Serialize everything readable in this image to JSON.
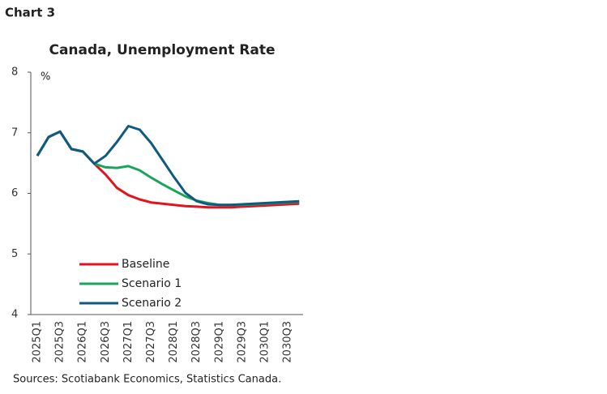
{
  "header": "Chart 3",
  "source": "Sources: Scotiabank Economics, Statistics Canada.",
  "chart_data": {
    "type": "line",
    "title": "Canada, Unemployment Rate",
    "y_unit": "%",
    "categories": [
      "2025Q1",
      null,
      "2025Q3",
      null,
      "2026Q1",
      null,
      "2026Q3",
      null,
      "2027Q1",
      null,
      "2027Q3",
      null,
      "2028Q1",
      null,
      "2028Q3",
      null,
      "2029Q1",
      null,
      "2029Q3",
      null,
      "2030Q1",
      null,
      "2030Q3",
      null
    ],
    "series": [
      {
        "name": "Baseline",
        "color": "#e0141e",
        "values": [
          6.62,
          6.93,
          7.02,
          6.73,
          6.69,
          6.49,
          6.31,
          6.09,
          5.97,
          5.9,
          5.85,
          5.83,
          5.81,
          5.79,
          5.78,
          5.77,
          5.77,
          5.77,
          5.78,
          5.79,
          5.8,
          5.81,
          5.82,
          5.83
        ]
      },
      {
        "name": "Scenario 1",
        "color": "#1aa55a",
        "values": [
          6.62,
          6.93,
          7.02,
          6.73,
          6.69,
          6.49,
          6.43,
          6.42,
          6.45,
          6.38,
          6.26,
          6.15,
          6.05,
          5.95,
          5.88,
          5.84,
          5.81,
          5.81,
          5.81,
          5.82,
          5.83,
          5.84,
          5.85,
          5.86
        ]
      },
      {
        "name": "Scenario 2",
        "color": "#0f5a80",
        "values": [
          6.62,
          6.93,
          7.02,
          6.73,
          6.69,
          6.49,
          6.62,
          6.85,
          7.11,
          7.05,
          6.83,
          6.55,
          6.27,
          6.01,
          5.87,
          5.82,
          5.81,
          5.81,
          5.82,
          5.83,
          5.84,
          5.85,
          5.86,
          5.87
        ]
      }
    ],
    "ylim": [
      4,
      8
    ],
    "yticks": [
      4,
      5,
      6,
      7,
      8
    ],
    "grid": false,
    "legend": "lower-left"
  }
}
